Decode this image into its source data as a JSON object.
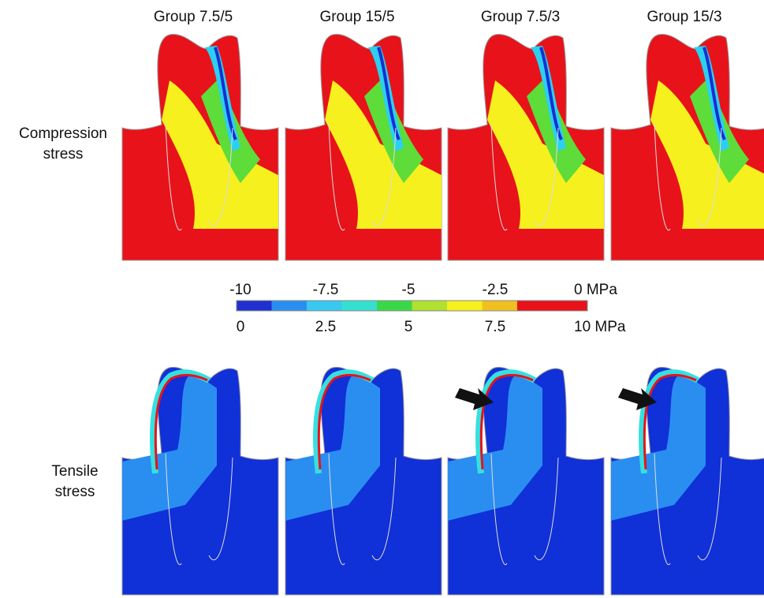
{
  "columns": [
    "Group 7.5/5",
    "Group 15/5",
    "Group 7.5/3",
    "Group 15/3"
  ],
  "rows": [
    [
      "Compression",
      "stress"
    ],
    [
      "Tensile",
      "stress"
    ]
  ],
  "colorbar": {
    "top_labels": [
      "-10",
      "-7.5",
      "-5",
      "-2.5",
      "0 MPa"
    ],
    "bottom_labels": [
      "0",
      "2.5",
      "5",
      "7.5",
      "10 MPa"
    ]
  }
}
